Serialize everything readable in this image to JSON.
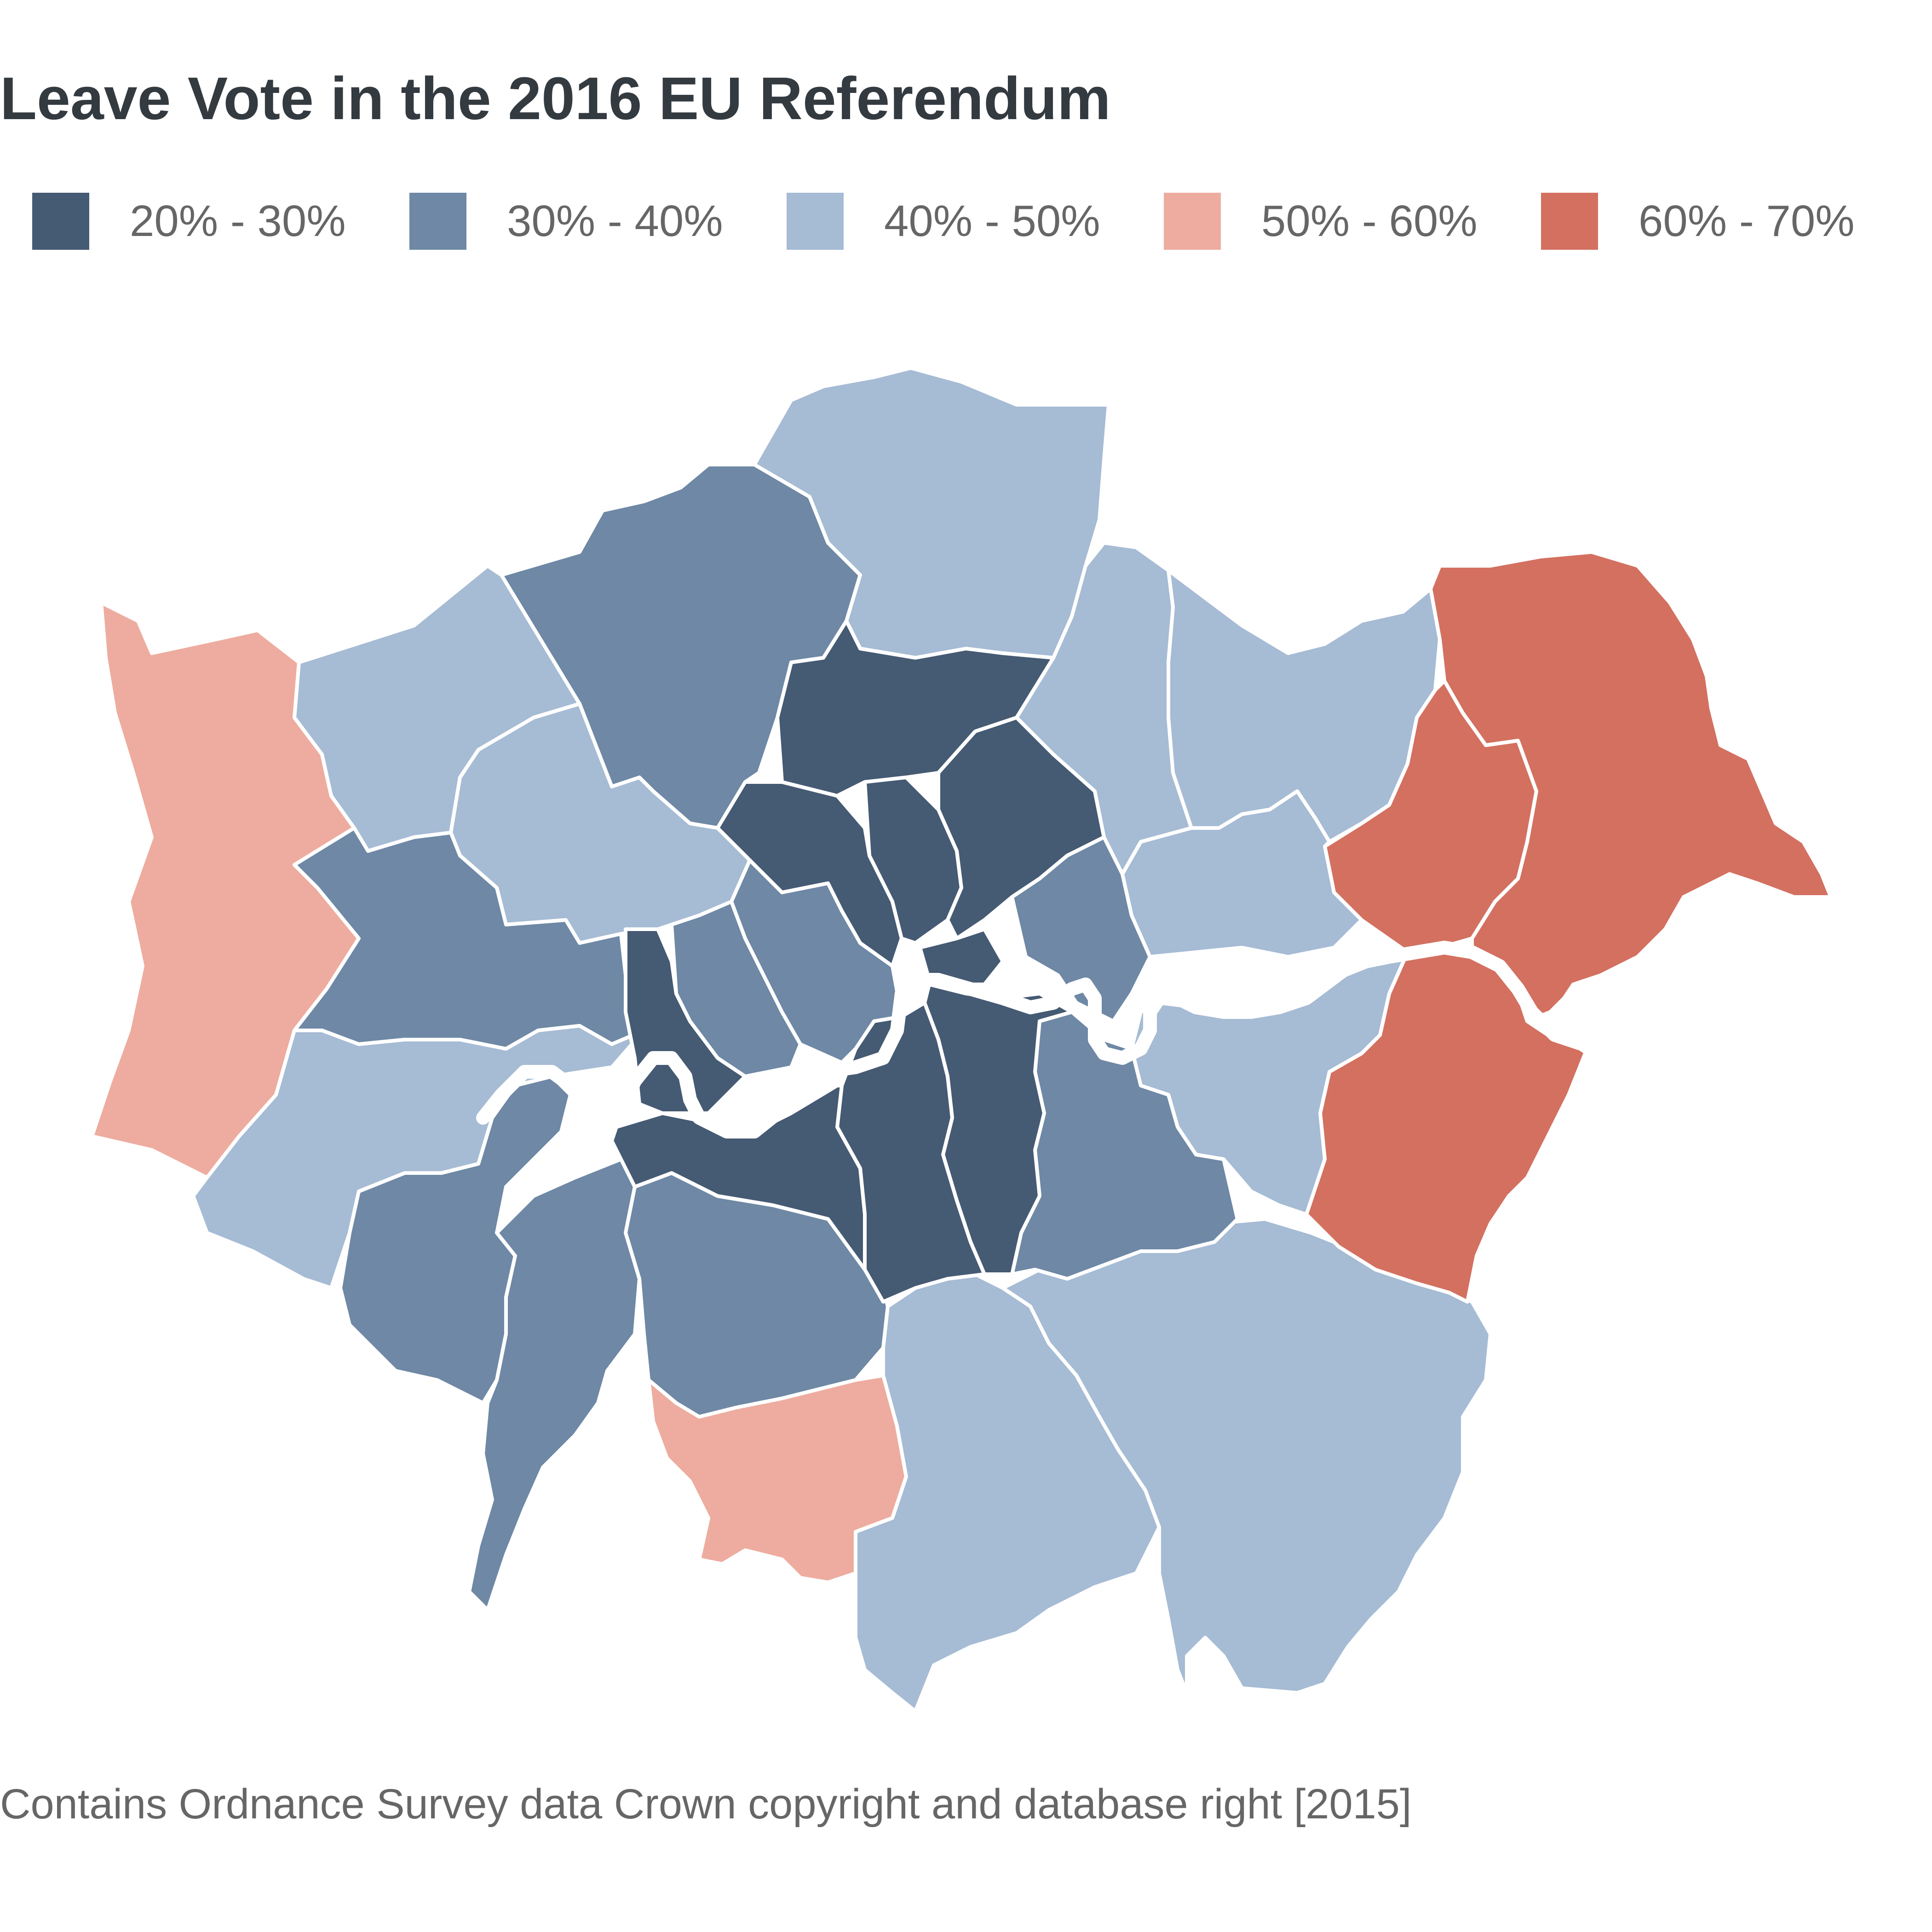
{
  "title": "Leave Vote in the 2016 EU Referendum",
  "caption": "Contains Ordnance Survey data Crown copyright and database right [2015]",
  "legend": [
    {
      "label": "20% - 30%",
      "color": "#455a73"
    },
    {
      "label": "30% - 40%",
      "color": "#6e88a5"
    },
    {
      "label": "40% - 50%",
      "color": "#a6bbd4"
    },
    {
      "label": "50% - 60%",
      "color": "#edac9f"
    },
    {
      "label": "60% - 70%",
      "color": "#d37060"
    }
  ],
  "colors": {
    "border": "#ffffff",
    "river": "#ffffff"
  }
}
